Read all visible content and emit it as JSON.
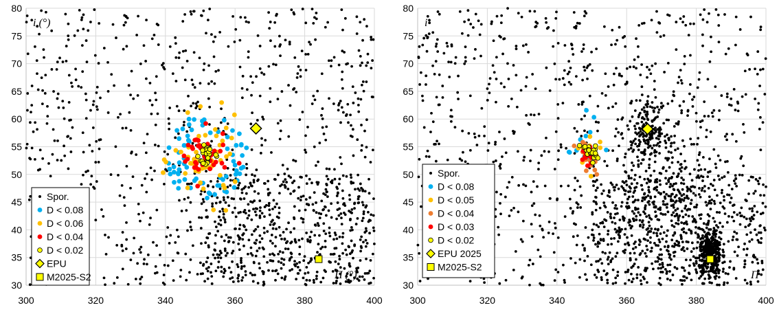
{
  "chart_data": [
    {
      "type": "scatter",
      "xlim": [
        300,
        400
      ],
      "ylim": [
        30,
        80
      ],
      "x_ticks": [
        "300",
        "320",
        "340",
        "360",
        "380",
        "400"
      ],
      "y_ticks": [
        "30",
        "35",
        "40",
        "45",
        "50",
        "55",
        "60",
        "65",
        "70",
        "75",
        "80"
      ],
      "xlabel": "Π (°)",
      "ylabel": "i (°)",
      "grid": true,
      "legend_position": "bottom-left",
      "legend": [
        "Spor.",
        "D < 0.08",
        "D < 0.06",
        "D < 0.04",
        "D < 0.02",
        "EPU",
        "M2025-S2"
      ],
      "series": [
        {
          "name": "Spor.",
          "color": "#000000",
          "marker": "dot",
          "density": "background field, denser toward lower-right (x 360-400, y 30-40)"
        },
        {
          "name": "D < 0.08",
          "color": "#00b0f0",
          "marker": "circle",
          "center": [
            352,
            53
          ],
          "spread": [
            11,
            8
          ]
        },
        {
          "name": "D < 0.06",
          "color": "#ffc000",
          "marker": "circle",
          "center": [
            352,
            52.5
          ],
          "spread": [
            8,
            6
          ]
        },
        {
          "name": "D < 0.04",
          "color": "#ff0000",
          "marker": "circle",
          "center": [
            350.5,
            53
          ],
          "spread": [
            6,
            4
          ]
        },
        {
          "name": "D < 0.02",
          "color": "#ffff00",
          "marker": "circle-outlined",
          "center": [
            352,
            53.5
          ],
          "spread": [
            2,
            2
          ]
        }
      ],
      "markers": [
        {
          "name": "EPU",
          "x": 366,
          "y": 58.3,
          "shape": "diamond",
          "color": "#ffff00"
        },
        {
          "name": "M2025-S2",
          "x": 384,
          "y": 34.7,
          "shape": "square",
          "color": "#ffff00"
        }
      ]
    },
    {
      "type": "scatter",
      "xlim": [
        300,
        400
      ],
      "ylim": [
        30,
        80
      ],
      "x_ticks": [
        "300",
        "320",
        "340",
        "360",
        "380",
        "400"
      ],
      "y_ticks": [
        "30",
        "35",
        "40",
        "45",
        "50",
        "55",
        "60",
        "65",
        "70",
        "75",
        "80"
      ],
      "xlabel": "Π",
      "ylabel": "i",
      "grid": true,
      "legend_position": "bottom-left",
      "legend": [
        "Spor.",
        "D < 0.08",
        "D < 0.05",
        "D < 0.04",
        "D < 0.03",
        "D < 0.02",
        "EPU 2025",
        "M2025-S2"
      ],
      "series": [
        {
          "name": "Spor.",
          "color": "#000000",
          "marker": "dot",
          "density": "background field with dense clumps near (366, 58) and (384, 35)"
        },
        {
          "name": "D < 0.08",
          "color": "#00b0f0",
          "marker": "circle",
          "center": [
            348,
            55
          ],
          "spread": [
            4,
            4
          ]
        },
        {
          "name": "D < 0.05",
          "color": "#ffc000",
          "marker": "circle",
          "center": [
            349,
            54
          ],
          "spread": [
            3,
            3
          ]
        },
        {
          "name": "D < 0.04",
          "color": "#ed7d31",
          "marker": "circle",
          "center": [
            349,
            53
          ],
          "spread": [
            3,
            3
          ]
        },
        {
          "name": "D < 0.03",
          "color": "#ff0000",
          "marker": "circle",
          "center": [
            349,
            53
          ],
          "spread": [
            2,
            2.5
          ]
        },
        {
          "name": "D < 0.02",
          "color": "#ffff00",
          "marker": "circle-outlined",
          "center": [
            349,
            54
          ],
          "spread": [
            2,
            1.5
          ]
        }
      ],
      "markers": [
        {
          "name": "EPU 2025",
          "x": 366,
          "y": 58.2,
          "shape": "diamond",
          "color": "#ffff00"
        },
        {
          "name": "M2025-S2",
          "x": 384,
          "y": 34.7,
          "shape": "square",
          "color": "#ffff00"
        }
      ]
    }
  ]
}
